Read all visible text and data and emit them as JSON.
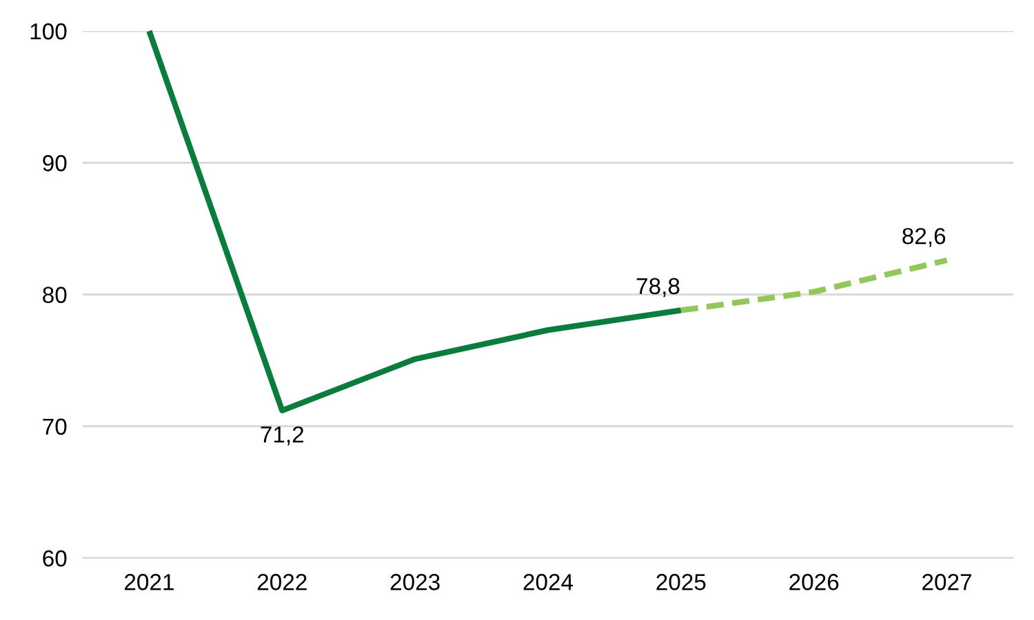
{
  "chart_data": {
    "type": "line",
    "categories": [
      "2021",
      "2022",
      "2023",
      "2024",
      "2025",
      "2026",
      "2027"
    ],
    "series": [
      {
        "color": "#0a7d3e",
        "line_style": "solid",
        "values": [
          100,
          71.2,
          75.1,
          77.3,
          78.8,
          null,
          null
        ],
        "value_labels": [
          null,
          "71,2",
          null,
          null,
          "78,8",
          null,
          null
        ]
      },
      {
        "color": "#92c85a",
        "line_style": "dashed",
        "values": [
          null,
          null,
          null,
          null,
          78.8,
          80.2,
          82.6
        ],
        "value_labels": [
          null,
          null,
          null,
          null,
          null,
          null,
          "82,6"
        ]
      }
    ],
    "ylim": [
      60,
      100
    ],
    "yticks": [
      60,
      70,
      80,
      90,
      100
    ],
    "grid": "y",
    "legend": false,
    "marker": "none"
  }
}
